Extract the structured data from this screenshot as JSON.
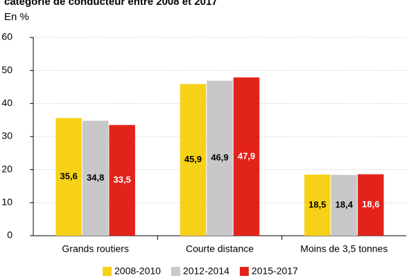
{
  "chart_data": {
    "type": "bar",
    "title": "catégorie de conducteur entre 2008 et 2017",
    "subtitle": "En %",
    "categories": [
      "Grands routiers",
      "Courte distance",
      "Moins de 3,5 tonnes"
    ],
    "series": [
      {
        "name": "2008-2010",
        "color": "#f7d117",
        "values": [
          35.6,
          45.9,
          18.5
        ],
        "value_labels": [
          "35,6",
          "45,9",
          "18,5"
        ]
      },
      {
        "name": "2012-2014",
        "color": "#c8c8ca",
        "values": [
          34.8,
          46.9,
          18.4
        ],
        "value_labels": [
          "34,8",
          "46,9",
          "18,4"
        ]
      },
      {
        "name": "2015-2017",
        "color": "#e2231a",
        "values": [
          33.5,
          47.9,
          18.6
        ],
        "value_labels": [
          "33,5",
          "47,9",
          "18,6"
        ]
      }
    ],
    "ylim": [
      0,
      60
    ],
    "yticks": [
      0,
      10,
      20,
      30,
      40,
      50,
      60
    ],
    "grid": true
  }
}
